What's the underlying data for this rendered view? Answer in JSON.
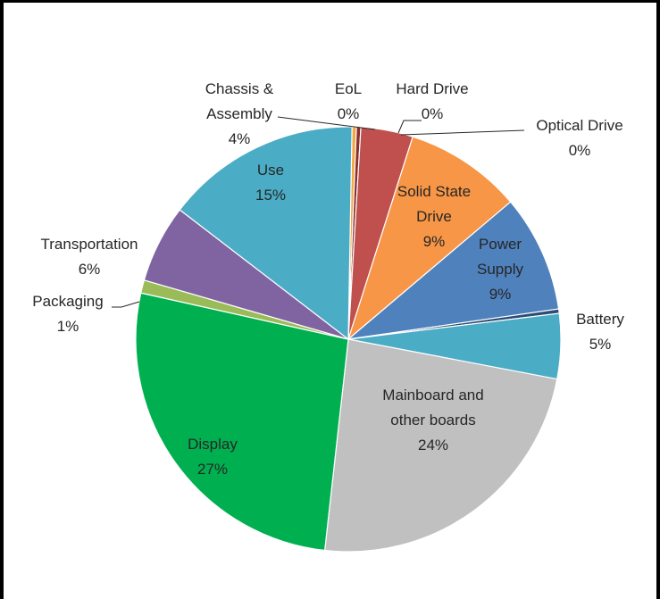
{
  "chart_data": {
    "type": "pie",
    "title": "",
    "slices": [
      {
        "label": "EoL",
        "value": 0,
        "percent_label": "0%",
        "color": "#F4A742"
      },
      {
        "label": "Hard Drive",
        "value": 0,
        "percent_label": "0%",
        "color": "#8B2F2F"
      },
      {
        "label": "Chassis &\nAssembly",
        "value": 4,
        "percent_label": "4%",
        "color": "#C0504D"
      },
      {
        "label": "Solid State\nDrive",
        "value": 9,
        "percent_label": "9%",
        "color": "#F79646"
      },
      {
        "label": "Power\nSupply",
        "value": 9,
        "percent_label": "9%",
        "color": "#4F81BD"
      },
      {
        "label": "Optical Drive",
        "value": 0,
        "percent_label": "0%",
        "color": "#2C4D75"
      },
      {
        "label": "Battery",
        "value": 5,
        "percent_label": "5%",
        "color": "#4BACC6"
      },
      {
        "label": "Mainboard and\nother boards",
        "value": 24,
        "percent_label": "24%",
        "color": "#C0C0C0"
      },
      {
        "label": "Display",
        "value": 27,
        "percent_label": "27%",
        "color": "#00B050"
      },
      {
        "label": "Packaging",
        "value": 1,
        "percent_label": "1%",
        "color": "#9BBB59"
      },
      {
        "label": "Transportation",
        "value": 6,
        "percent_label": "6%",
        "color": "#8064A2"
      },
      {
        "label": "Use",
        "value": 15,
        "percent_label": "15%",
        "color": "#4BACC6"
      }
    ]
  }
}
